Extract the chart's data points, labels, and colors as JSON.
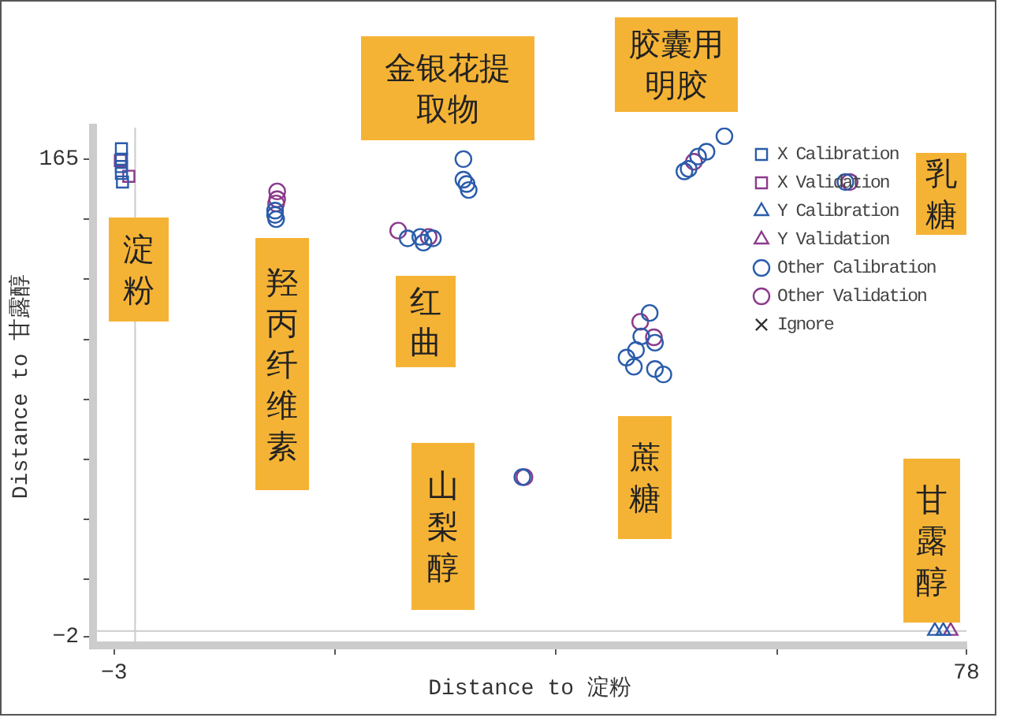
{
  "chart_data": {
    "type": "scatter",
    "xlabel": "Distance to 淀粉",
    "ylabel": "Distance to 甘露醇",
    "xlim": [
      -5,
      78
    ],
    "ylim": [
      -5,
      176
    ],
    "xticks": [
      {
        "value": -3,
        "label": "−3"
      },
      {
        "value": 18,
        "label": null
      },
      {
        "value": 39,
        "label": null
      },
      {
        "value": 60,
        "label": null
      },
      {
        "value": 78,
        "label": "78"
      }
    ],
    "yticks": [
      {
        "value": -2,
        "label": "−2"
      },
      {
        "value": 18,
        "label": null
      },
      {
        "value": 39,
        "label": null
      },
      {
        "value": 60,
        "label": null
      },
      {
        "value": 81,
        "label": null
      },
      {
        "value": 102,
        "label": null
      },
      {
        "value": 123,
        "label": null
      },
      {
        "value": 144,
        "label": null
      },
      {
        "value": 165,
        "label": "165"
      }
    ],
    "grid": false,
    "legend": "top right",
    "ref_lines": [
      {
        "axis": "x",
        "value": -1,
        "color": "#cccccc"
      },
      {
        "axis": "y",
        "value": 0,
        "color": "#cccccc"
      }
    ],
    "series": [
      {
        "name": "X Calibration",
        "color": "#2a5caa",
        "marker": "square",
        "x": [
          -2.3,
          -2.3,
          -2.3,
          -2.3,
          -2.2
        ],
        "values": [
          168.6,
          165,
          162.4,
          160,
          157
        ]
      },
      {
        "name": "X Validation",
        "color": "#8b3a8b",
        "marker": "square",
        "x": [
          -2.4,
          -1.6
        ],
        "values": [
          164.5,
          159
        ]
      },
      {
        "name": "Y Calibration",
        "color": "#2a5caa",
        "marker": "triangle",
        "x": [
          75,
          75.8
        ],
        "values": [
          0,
          0
        ]
      },
      {
        "name": "Y Validation",
        "color": "#8b3a8b",
        "marker": "triangle",
        "x": [
          76.5
        ],
        "values": [
          0
        ]
      },
      {
        "name": "Other Calibration",
        "color": "#2a5caa",
        "marker": "circle",
        "x": [
          12.3,
          12.3,
          12.4,
          24.9,
          26.1,
          26.4,
          27.3,
          30.2,
          30.2,
          30.5,
          30.7,
          35.8,
          47.9,
          47.1,
          48.4,
          46.6,
          45.7,
          46.4,
          48.4,
          49.2,
          53.3,
          52.5,
          51.2,
          51.6,
          55,
          66.5
        ],
        "values": [
          147,
          145.5,
          144,
          137.3,
          137.8,
          135.8,
          137.3,
          165,
          157.8,
          156.3,
          154.2,
          53.8,
          111.2,
          103,
          100.8,
          98.2,
          95.6,
          92.4,
          91.6,
          89.7,
          167.6,
          165.9,
          160.7,
          161.6,
          173,
          157
        ]
      },
      {
        "name": "Other Validation",
        "color": "#8b3a8b",
        "marker": "circle",
        "x": [
          12.5,
          12.5,
          12.4,
          24,
          26.9,
          36,
          47,
          48.3,
          52.1,
          66.9
        ],
        "values": [
          153.7,
          151,
          149.5,
          140,
          137.8,
          53.8,
          108.1,
          102.7,
          164.1,
          157
        ]
      },
      {
        "name": "Ignore",
        "color": "#333333",
        "marker": "cross"
      }
    ],
    "annotations": [
      "淀粉",
      "羟丙纤维素",
      "金银花提取物",
      "红曲",
      "山梨醇",
      "蔗糖",
      "胶囊用明胶",
      "乳糖",
      "甘露醇"
    ]
  }
}
